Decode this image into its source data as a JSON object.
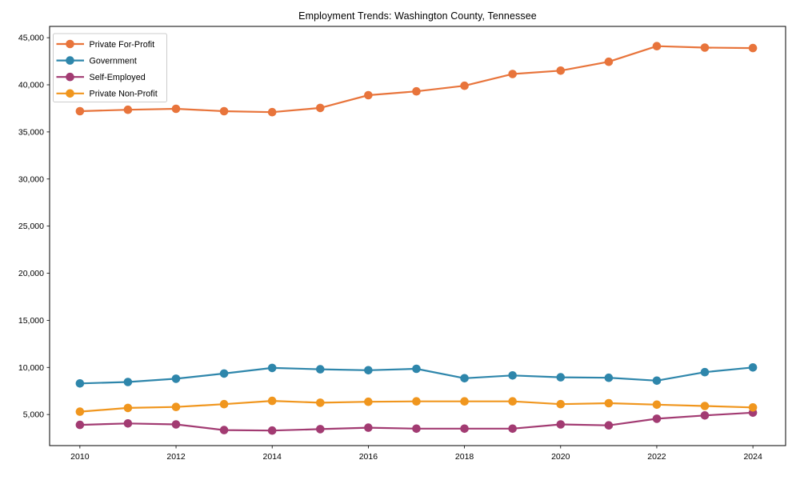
{
  "figure": {
    "background": "#ffffff",
    "plot_border_color": "#000000"
  },
  "chart_data": {
    "type": "line",
    "title": "Employment Trends: Washington County, Tennessee",
    "xlabel": "",
    "ylabel": "",
    "x": [
      2010,
      2011,
      2012,
      2013,
      2014,
      2015,
      2016,
      2017,
      2018,
      2019,
      2020,
      2021,
      2022,
      2023,
      2024
    ],
    "series": [
      {
        "name": "Private For-Profit",
        "color": "#E8743B",
        "values": [
          37200,
          37350,
          37450,
          37200,
          37100,
          37550,
          38900,
          39300,
          39900,
          41150,
          41500,
          42450,
          44100,
          43950,
          43900
        ]
      },
      {
        "name": "Government",
        "color": "#2E86AB",
        "values": [
          8300,
          8450,
          8800,
          9350,
          9950,
          9800,
          9700,
          9850,
          8850,
          9150,
          8950,
          8900,
          8600,
          9500,
          10000
        ]
      },
      {
        "name": "Self-Employed",
        "color": "#A23B72",
        "values": [
          3900,
          4050,
          3950,
          3350,
          3300,
          3450,
          3600,
          3500,
          3500,
          3500,
          3950,
          3850,
          4550,
          4900,
          5200
        ]
      },
      {
        "name": "Private Non-Profit",
        "color": "#F0961E",
        "values": [
          5300,
          5700,
          5800,
          6100,
          6450,
          6250,
          6350,
          6400,
          6400,
          6400,
          6100,
          6200,
          6050,
          5900,
          5750
        ]
      }
    ],
    "xlim": [
      2009.37,
      2024.68
    ],
    "ylim": [
      1700,
      46200
    ],
    "xticks": [
      2010,
      2012,
      2014,
      2016,
      2018,
      2020,
      2022,
      2024
    ],
    "yticks": [
      5000,
      10000,
      15000,
      20000,
      25000,
      30000,
      35000,
      40000,
      45000
    ],
    "ytick_labels": [
      "5,000",
      "10,000",
      "15,000",
      "20,000",
      "25,000",
      "30,000",
      "35,000",
      "40,000",
      "45,000"
    ],
    "grid": false,
    "legend_position": "upper-left",
    "legend": [
      "Private For-Profit",
      "Government",
      "Self-Employed",
      "Private Non-Profit"
    ]
  }
}
